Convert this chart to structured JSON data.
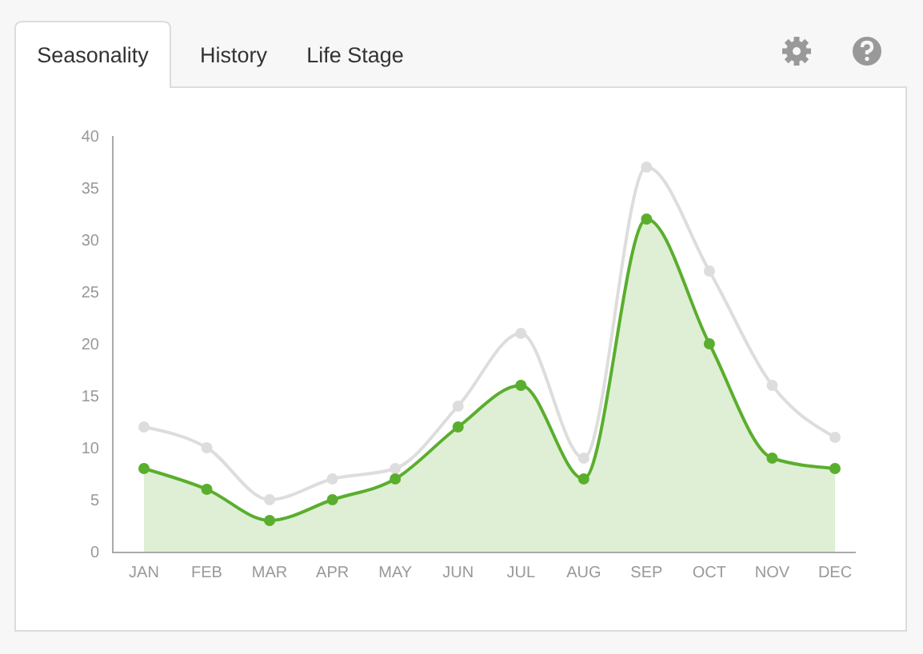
{
  "chart_data": {
    "type": "area",
    "annotations": [
      "Seasonality",
      "History",
      "Life Stage"
    ],
    "categories": [
      "JAN",
      "FEB",
      "MAR",
      "APR",
      "MAY",
      "JUN",
      "JUL",
      "AUG",
      "SEP",
      "OCT",
      "NOV",
      "DEC"
    ],
    "series": [
      {
        "type": "line",
        "color": "#dddddd",
        "values": [
          12,
          10,
          5,
          7,
          8,
          14,
          21,
          9,
          37,
          27,
          16,
          11
        ]
      },
      {
        "color": "#5aae2e",
        "values": [
          8,
          6,
          3,
          5,
          7,
          12,
          16,
          7,
          32,
          20,
          9,
          8
        ]
      }
    ],
    "ylim": [
      0,
      40
    ],
    "yticks": [
      0,
      5,
      10,
      15,
      20,
      25,
      30,
      35,
      40
    ],
    "grid": false,
    "marker": "circle"
  }
}
